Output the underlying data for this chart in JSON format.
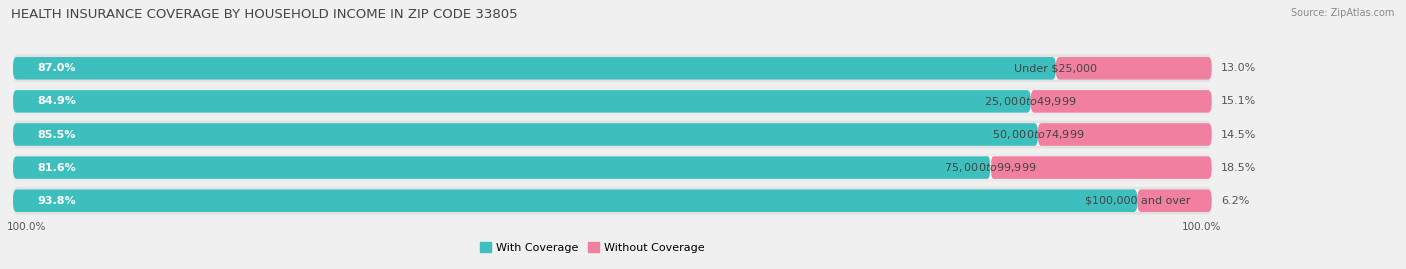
{
  "title": "HEALTH INSURANCE COVERAGE BY HOUSEHOLD INCOME IN ZIP CODE 33805",
  "source": "Source: ZipAtlas.com",
  "categories": [
    "Under $25,000",
    "$25,000 to $49,999",
    "$50,000 to $74,999",
    "$75,000 to $99,999",
    "$100,000 and over"
  ],
  "with_coverage": [
    87.0,
    84.9,
    85.5,
    81.6,
    93.8
  ],
  "without_coverage": [
    13.0,
    15.1,
    14.5,
    18.5,
    6.2
  ],
  "coverage_color": "#3dbfbe",
  "coverage_color_dark": "#2aa0a0",
  "no_coverage_color": "#f07fa0",
  "no_coverage_color_light": "#f9b8cc",
  "background_color": "#f0f0f0",
  "row_bg_color": "#e2e2e2",
  "row_bg_color2": "#ebebeb",
  "white": "#ffffff",
  "title_fontsize": 9.5,
  "label_fontsize": 8.0,
  "value_fontsize": 8.0,
  "tick_fontsize": 7.5,
  "bar_height": 0.68,
  "legend_labels": [
    "With Coverage",
    "Without Coverage"
  ],
  "total_width": 100,
  "left_label": "100.0%",
  "right_label": "100.0%"
}
